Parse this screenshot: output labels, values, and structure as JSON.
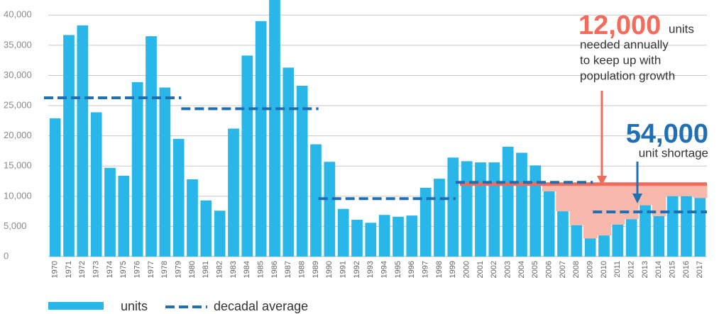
{
  "chart_data": {
    "type": "bar",
    "categories": [
      "1970",
      "1971",
      "1972",
      "1973",
      "1974",
      "1975",
      "1976",
      "1977",
      "1978",
      "1979",
      "1980",
      "1981",
      "1982",
      "1983",
      "1984",
      "1985",
      "1986",
      "1987",
      "1988",
      "1989",
      "1990",
      "1991",
      "1992",
      "1993",
      "1994",
      "1995",
      "1996",
      "1997",
      "1998",
      "1999",
      "2000",
      "2001",
      "2002",
      "2003",
      "2004",
      "2005",
      "2006",
      "2007",
      "2008",
      "2009",
      "2010",
      "2011",
      "2012",
      "2013",
      "2014",
      "2015",
      "2016",
      "2017"
    ],
    "series": [
      {
        "name": "units",
        "color": "#29b6e8",
        "values": [
          22900,
          36700,
          38300,
          23900,
          14700,
          13400,
          28900,
          36500,
          28000,
          19500,
          12800,
          9300,
          7600,
          21200,
          33300,
          39000,
          43000,
          31300,
          28300,
          18600,
          15700,
          7900,
          6100,
          5600,
          6900,
          6600,
          6800,
          11400,
          12900,
          16400,
          15800,
          15600,
          15600,
          18200,
          17200,
          15100,
          10800,
          7500,
          5200,
          3000,
          3500,
          5300,
          6200,
          8500,
          6700,
          10000,
          10000,
          9700
        ]
      }
    ],
    "decadal_average": {
      "name": "decadal average",
      "color": "#1f6fb4",
      "categories": [
        "1970",
        "1980",
        "1990",
        "2000",
        "2010"
      ],
      "values": [
        26300,
        24500,
        9600,
        12300,
        7400
      ]
    },
    "need_line": {
      "value": 12000,
      "label": "12,000",
      "start": "2000",
      "color": "#f26b5b",
      "shade_color": "#f8b9ad",
      "unit_text": "units",
      "lines": [
        "needed annually",
        "to keep up with",
        "population growth"
      ]
    },
    "shortage": {
      "label": "54,000",
      "text": "unit shortage",
      "color": "#1f6fb4"
    },
    "ylim": [
      0,
      42500
    ],
    "yticks": [
      0,
      {
        "value": 5000,
        "label": "5,000"
      },
      {
        "value": 10000,
        "label": "10,000"
      },
      {
        "value": 15000,
        "label": "15,000"
      },
      {
        "value": 20000,
        "label": "20,000"
      },
      {
        "value": 25000,
        "label": "25,000"
      },
      {
        "value": 30000,
        "label": "30,000"
      },
      {
        "value": 35000,
        "label": "35,000"
      },
      {
        "value": 40000,
        "label": "40,000"
      }
    ],
    "grid": true
  }
}
